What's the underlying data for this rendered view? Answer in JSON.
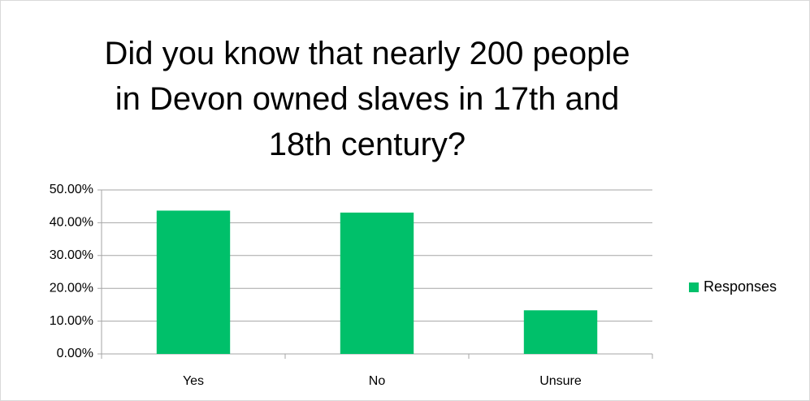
{
  "chart_data": {
    "type": "bar",
    "title": "Did you know that nearly 200 people in Devon owned slaves in 17th and 18th century?",
    "categories": [
      "Yes",
      "No",
      "Unsure"
    ],
    "series": [
      {
        "name": "Responses",
        "color": "#00c06a",
        "values": [
          43.7,
          43.1,
          13.3
        ]
      }
    ],
    "ylim": [
      0,
      50
    ],
    "yticks": [
      {
        "value": 0,
        "label": "0.00%"
      },
      {
        "value": 10,
        "label": "10.00%"
      },
      {
        "value": 20,
        "label": "20.00%"
      },
      {
        "value": 30,
        "label": "30.00%"
      },
      {
        "value": 40,
        "label": "40.00%"
      },
      {
        "value": 50,
        "label": "50.00%"
      }
    ],
    "grid": true,
    "legend": "right"
  }
}
